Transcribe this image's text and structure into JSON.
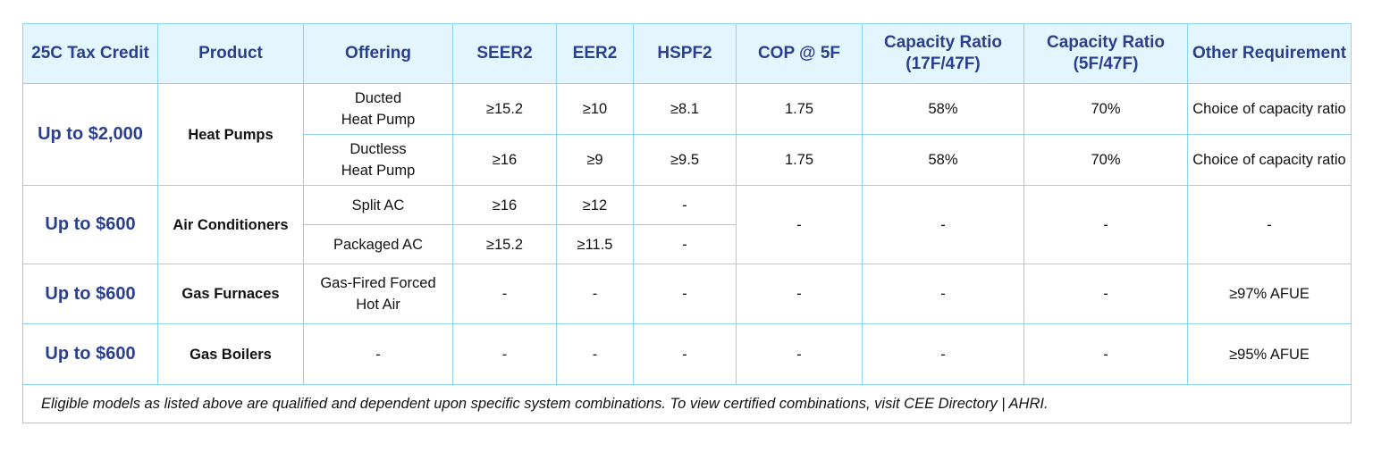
{
  "headers": [
    "25C Tax Credit",
    "Product",
    "Offering",
    "SEER2",
    "EER2",
    "HSPF2",
    "COP @ 5F",
    "Capacity Ratio (17F/47F)",
    "Capacity Ratio (5F/47F)",
    "Other Requirement"
  ],
  "groups": [
    {
      "credit": "Up to $2,000",
      "product": "Heat Pumps",
      "rows": [
        {
          "offering": "Ducted\nHeat Pump",
          "seer2": "≥15.2",
          "eer2": "≥10",
          "hspf2": "≥8.1",
          "cop": "1.75",
          "cr17": "58%",
          "cr5": "70%",
          "other": "Choice of capacity ratio"
        },
        {
          "offering": "Ductless\nHeat Pump",
          "seer2": "≥16",
          "eer2": "≥9",
          "hspf2": "≥9.5",
          "cop": "1.75",
          "cr17": "58%",
          "cr5": "70%",
          "other": "Choice of capacity ratio"
        }
      ]
    },
    {
      "credit": "Up to $600",
      "product": "Air Conditioners",
      "rows": [
        {
          "offering": "Split AC",
          "seer2": "≥16",
          "eer2": "≥12",
          "hspf2": "-"
        },
        {
          "offering": "Packaged AC",
          "seer2": "≥15.2",
          "eer2": "≥11.5",
          "hspf2": "-"
        }
      ],
      "shared": {
        "cop": "-",
        "cr17": "-",
        "cr5": "-",
        "other": "-"
      }
    },
    {
      "credit": "Up to $600",
      "product": "Gas Furnaces",
      "rows": [
        {
          "offering": "Gas-Fired Forced Hot Air",
          "seer2": "-",
          "eer2": "-",
          "hspf2": "-",
          "cop": "-",
          "cr17": "-",
          "cr5": "-",
          "other": "≥97% AFUE"
        }
      ]
    },
    {
      "credit": "Up to $600",
      "product": "Gas Boilers",
      "rows": [
        {
          "offering": "-",
          "seer2": "-",
          "eer2": "-",
          "hspf2": "-",
          "cop": "-",
          "cr17": "-",
          "cr5": "-",
          "other": "≥95% AFUE"
        }
      ]
    }
  ],
  "footnote": "Eligible models as listed above are qualified and dependent upon specific system combinations. To view certified combinations, visit CEE Directory | AHRI."
}
